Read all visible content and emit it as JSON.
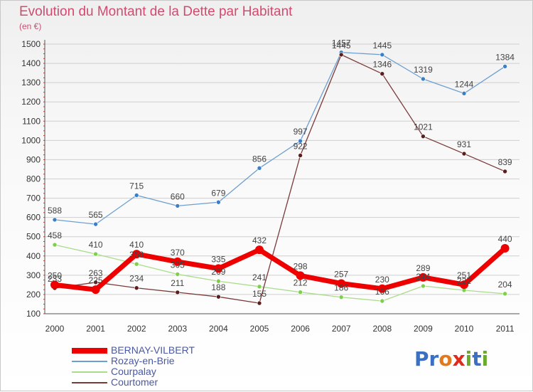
{
  "title": "Evolution du Montant de la Dette par Habitant",
  "subtitle": "(en €)",
  "logo": {
    "text": "Proxiti",
    "letters": [
      "P",
      "r",
      "o",
      "x",
      "i",
      "t",
      "i"
    ],
    "colors": [
      "#3a6fc2",
      "#3a6fc2",
      "#e27a1d",
      "#e02a1b",
      "#6aab2c",
      "#3a6fc2",
      "#6aab2c"
    ]
  },
  "colors": {
    "title": "#d24b6e",
    "legend_text": "#4a58a5",
    "grid": "#cfcfcf"
  },
  "chart_data": {
    "type": "line",
    "x": [
      "2000",
      "2001",
      "2002",
      "2003",
      "2004",
      "2005",
      "2006",
      "2007",
      "2008",
      "2009",
      "2010",
      "2011"
    ],
    "ylim": [
      100,
      1500
    ],
    "yticks": [
      "100",
      "200",
      "300",
      "400",
      "500",
      "600",
      "700",
      "800",
      "900",
      "1000",
      "1100",
      "1200",
      "1300",
      "1400",
      "1500"
    ],
    "grid": "horizontal",
    "legend_position": "bottom-left",
    "series": [
      {
        "name": "Rozay-en-Brie",
        "color": "#6d9fd0",
        "marker": "#3a7fc8",
        "values": [
          588,
          565,
          715,
          660,
          679,
          856,
          997,
          1457,
          1445,
          1319,
          1244,
          1384
        ],
        "labels": [
          "588",
          "565",
          "715",
          "660",
          "679",
          "856",
          "997",
          "1457",
          "1445",
          "1319",
          "1244",
          "1384"
        ]
      },
      {
        "name": "Courpalay",
        "color": "#a9dd8a",
        "marker": "#7fcf4a",
        "values": [
          458,
          410,
          358,
          305,
          269,
          241,
          212,
          186,
          166,
          244,
          222,
          204
        ],
        "labels": [
          "458",
          "410",
          "358",
          "305",
          "269",
          "241",
          "212",
          "186",
          "166",
          "244",
          "222",
          "204"
        ]
      },
      {
        "name": "Courtomer",
        "color": "#7a3a3a",
        "marker": "#5a1e1e",
        "values": [
          233,
          263,
          234,
          211,
          188,
          155,
          922,
          1445,
          1346,
          1021,
          931,
          839
        ],
        "labels": [
          "233",
          "263",
          "234",
          "211",
          "188",
          "155",
          "922",
          "1445",
          "1346",
          "1021",
          "931",
          "839"
        ]
      },
      {
        "name": "BERNAY-VILBERT",
        "color": "#ee0000",
        "marker": "#ee0000",
        "values": [
          250,
          225,
          410,
          370,
          335,
          432,
          298,
          257,
          230,
          289,
          251,
          440
        ],
        "labels": [
          "250",
          "225",
          "410",
          "370",
          "335",
          "432",
          "298",
          "257",
          "230",
          "289",
          "251",
          "440"
        ]
      }
    ],
    "legend": [
      "BERNAY-VILBERT",
      "Rozay-en-Brie",
      "Courpalay",
      "Courtomer"
    ]
  }
}
